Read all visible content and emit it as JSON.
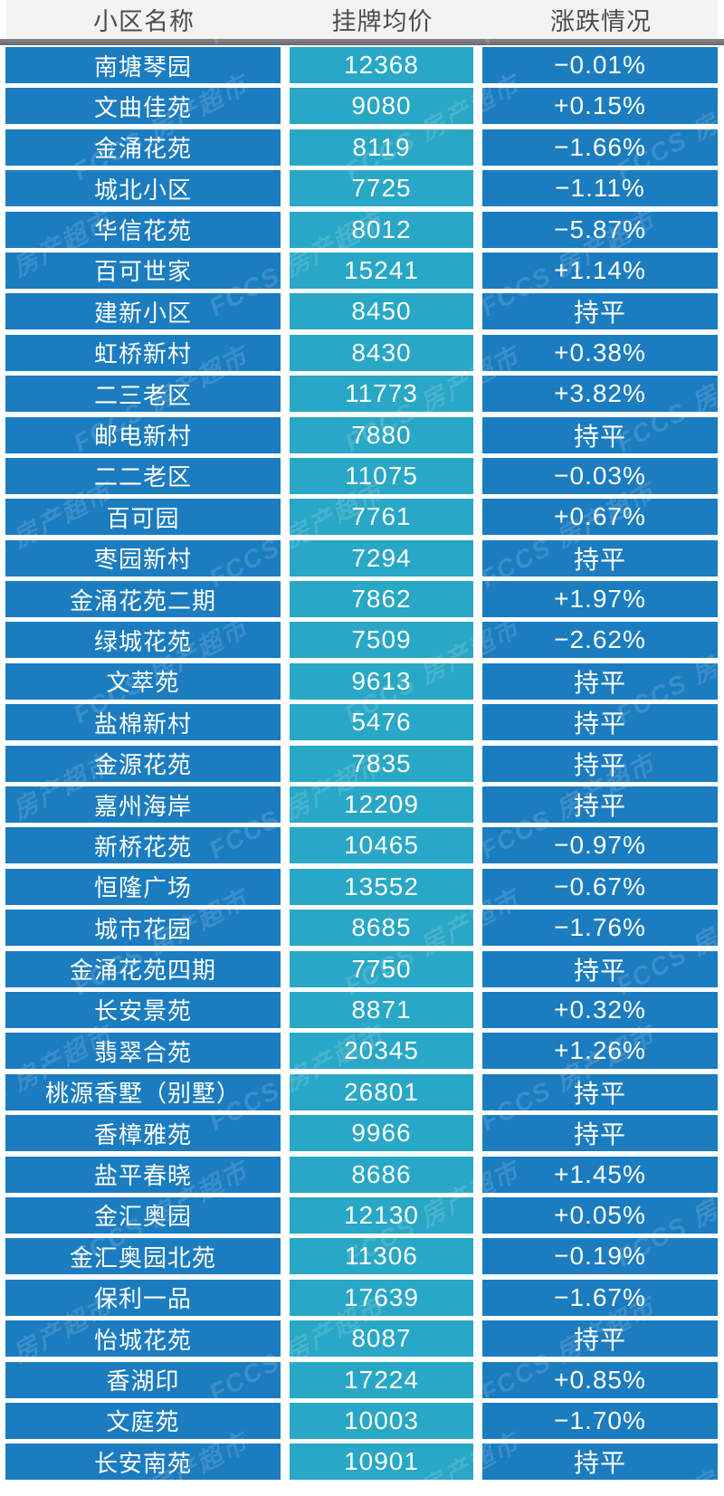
{
  "chart_data": {
    "type": "table",
    "title": "",
    "columns": [
      "小区名称",
      "挂牌均价",
      "涨跌情况"
    ],
    "rows": [
      [
        "南塘琴园",
        12368,
        "−0.01%"
      ],
      [
        "文曲佳苑",
        9080,
        "+0.15%"
      ],
      [
        "金涌花苑",
        8119,
        "−1.66%"
      ],
      [
        "城北小区",
        7725,
        "−1.11%"
      ],
      [
        "华信花苑",
        8012,
        "−5.87%"
      ],
      [
        "百可世家",
        15241,
        "+1.14%"
      ],
      [
        "建新小区",
        8450,
        "持平"
      ],
      [
        "虹桥新村",
        8430,
        "+0.38%"
      ],
      [
        "二三老区",
        11773,
        "+3.82%"
      ],
      [
        "邮电新村",
        7880,
        "持平"
      ],
      [
        "二二老区",
        11075,
        "−0.03%"
      ],
      [
        "百可园",
        7761,
        "+0.67%"
      ],
      [
        "枣园新村",
        7294,
        "持平"
      ],
      [
        "金涌花苑二期",
        7862,
        "+1.97%"
      ],
      [
        "绿城花苑",
        7509,
        "−2.62%"
      ],
      [
        "文萃苑",
        9613,
        "持平"
      ],
      [
        "盐棉新村",
        5476,
        "持平"
      ],
      [
        "金源花苑",
        7835,
        "持平"
      ],
      [
        "嘉州海岸",
        12209,
        "持平"
      ],
      [
        "新桥花苑",
        10465,
        "−0.97%"
      ],
      [
        "恒隆广场",
        13552,
        "−0.67%"
      ],
      [
        "城市花园",
        8685,
        "−1.76%"
      ],
      [
        "金涌花苑四期",
        7750,
        "持平"
      ],
      [
        "长安景苑",
        8871,
        "+0.32%"
      ],
      [
        "翡翠合苑",
        20345,
        "+1.26%"
      ],
      [
        "桃源香墅（别墅）",
        26801,
        "持平"
      ],
      [
        "香樟雅苑",
        9966,
        "持平"
      ],
      [
        "盐平春晓",
        8686,
        "+1.45%"
      ],
      [
        "金汇奥园",
        12130,
        "+0.05%"
      ],
      [
        "金汇奥园北苑",
        11306,
        "−0.19%"
      ],
      [
        "保利一品",
        17639,
        "−1.67%"
      ],
      [
        "怡城花苑",
        8087,
        "持平"
      ],
      [
        "香湖印",
        17224,
        "+0.85%"
      ],
      [
        "文庭苑",
        10003,
        "−1.70%"
      ],
      [
        "长安南苑",
        10901,
        "持平"
      ]
    ]
  },
  "watermark": {
    "text": "FCCS 房产超市"
  },
  "colors": {
    "row_blue": "#1b7cc0",
    "price_teal": "#28a7c6",
    "header_bg": "#f3f3f2",
    "header_text": "#4c4c4c",
    "divider_gray": "#69696e",
    "text_white": "#ffffff"
  }
}
